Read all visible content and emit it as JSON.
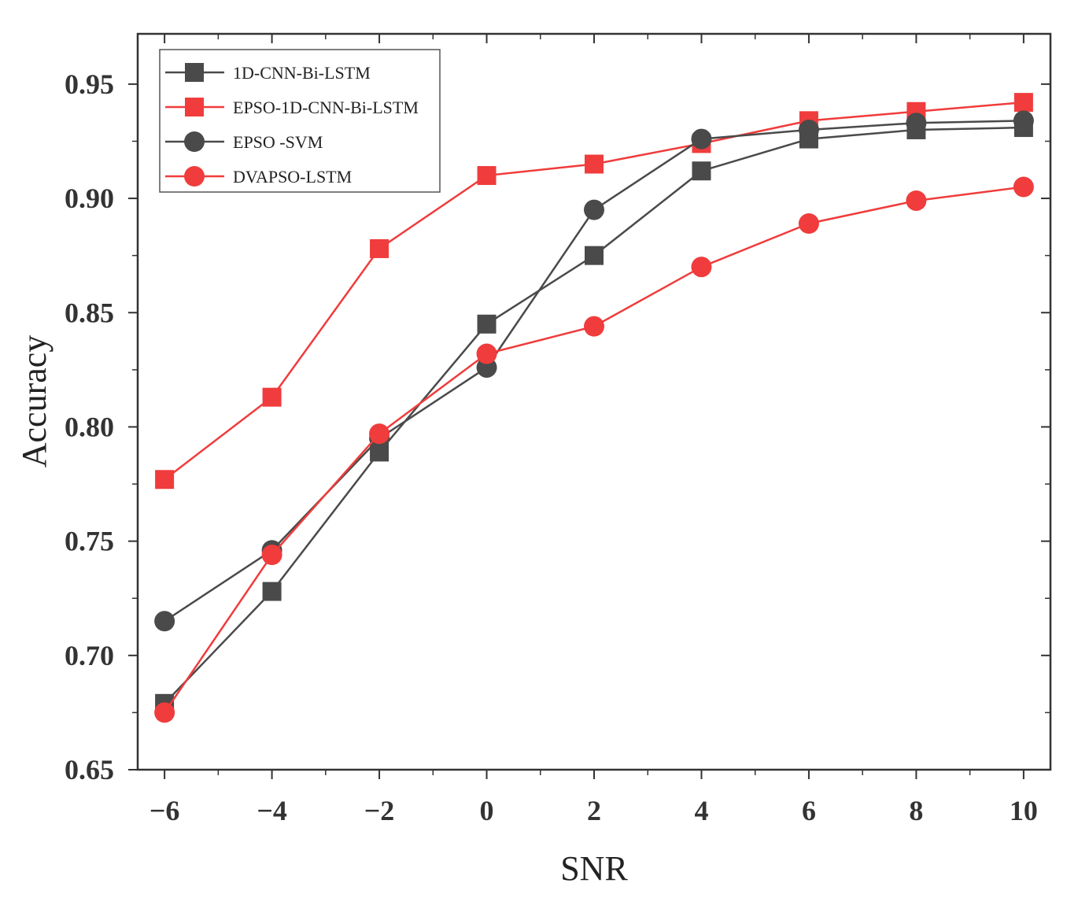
{
  "chart_data": {
    "type": "line",
    "title": "",
    "xlabel": "SNR",
    "ylabel": "Accuracy",
    "x": [
      -6,
      -4,
      -2,
      0,
      2,
      4,
      6,
      8,
      10
    ],
    "x_tick_labels": [
      "−6",
      "−4",
      "−2",
      "0",
      "2",
      "4",
      "6",
      "8",
      "10"
    ],
    "y_ticks": [
      0.65,
      0.7,
      0.75,
      0.8,
      0.85,
      0.9,
      0.95
    ],
    "y_tick_labels": [
      "0.65",
      "0.70",
      "0.75",
      "0.80",
      "0.85",
      "0.90",
      "0.95"
    ],
    "xlim": [
      -6.5,
      10.5
    ],
    "ylim": [
      0.65,
      0.972
    ],
    "grid": false,
    "legend_position": "top-left",
    "series": [
      {
        "name": "1D-CNN-Bi-LSTM",
        "color": "#4a4a4a",
        "marker": "square",
        "values": [
          0.679,
          0.728,
          0.789,
          0.845,
          0.875,
          0.912,
          0.926,
          0.93,
          0.931
        ]
      },
      {
        "name": "EPSO-1D-CNN-Bi-LSTM",
        "color": "#f03c3c",
        "marker": "square",
        "values": [
          0.777,
          0.813,
          0.878,
          0.91,
          0.915,
          0.924,
          0.934,
          0.938,
          0.942
        ]
      },
      {
        "name": "EPSO -SVM",
        "color": "#4a4a4a",
        "marker": "circle",
        "values": [
          0.715,
          0.746,
          0.795,
          0.826,
          0.895,
          0.926,
          0.93,
          0.933,
          0.934
        ]
      },
      {
        "name": "DVAPSO-LSTM",
        "color": "#f03c3c",
        "marker": "circle",
        "values": [
          0.675,
          0.744,
          0.797,
          0.832,
          0.844,
          0.87,
          0.889,
          0.899,
          0.905
        ]
      }
    ]
  }
}
